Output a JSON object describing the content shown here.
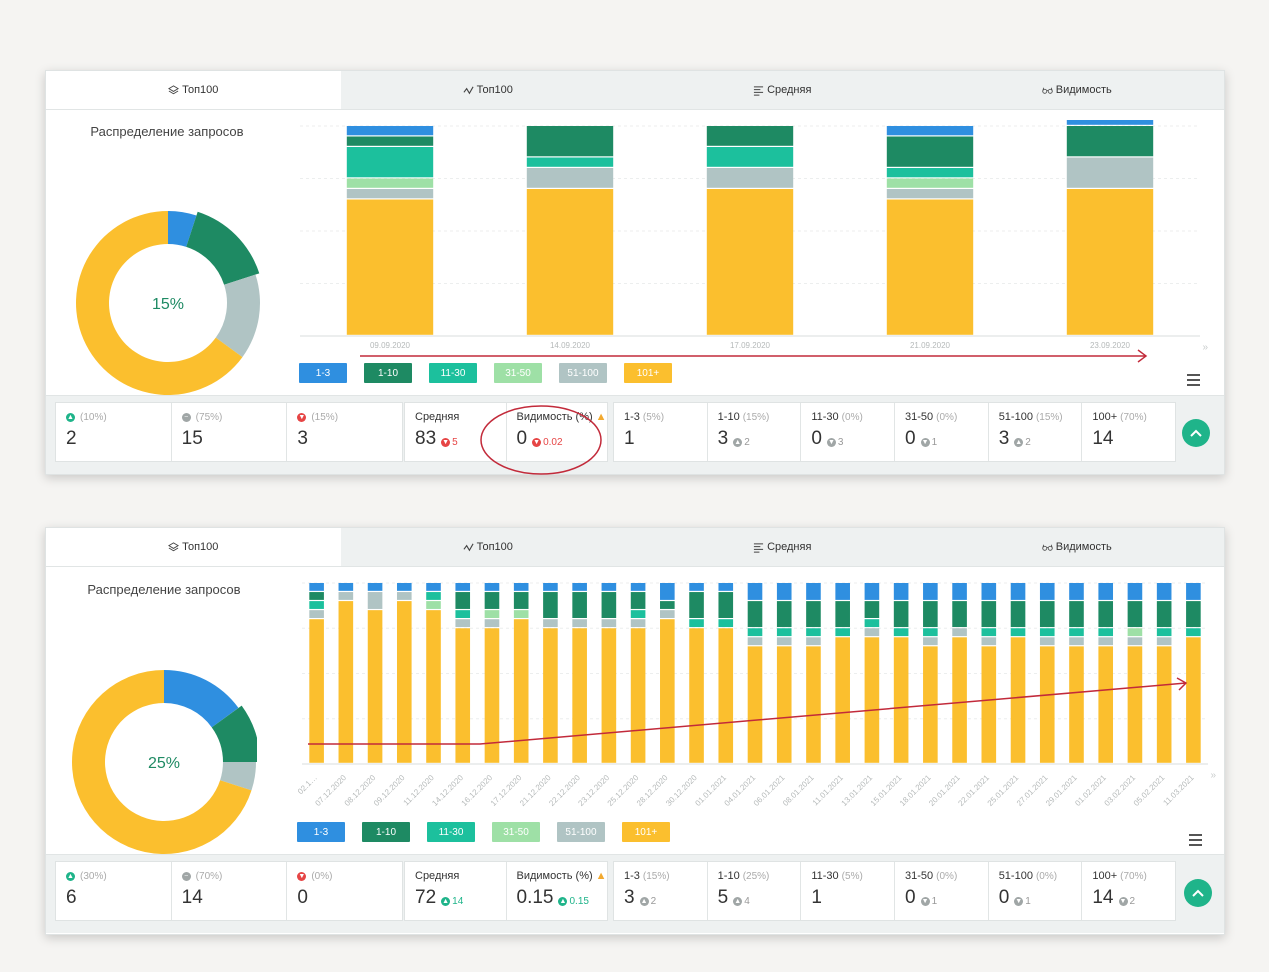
{
  "colors": {
    "c1_3": "#2f8fe0",
    "c1_10": "#1e8a63",
    "c11_30": "#1cc09d",
    "c31_50": "#9ee0a6",
    "c51_100": "#b0c4c4",
    "c101": "#fbbf2e",
    "accent": "#1fb48a",
    "annotation": "#c22a3a"
  },
  "panels": [
    {
      "tabs": [
        {
          "label": "Топ100",
          "icon": "layers-icon"
        },
        {
          "label": "Топ100",
          "icon": "trend-icon"
        },
        {
          "label": "Средняя",
          "icon": "lines-icon"
        },
        {
          "label": "Видимость",
          "icon": "glasses-icon"
        }
      ],
      "distribution_title": "Распределение запросов",
      "donut": {
        "center": "15%",
        "shares": [
          5,
          15,
          15,
          65
        ]
      },
      "legend": [
        "1-3",
        "1-10",
        "11-30",
        "31-50",
        "51-100",
        "101+"
      ],
      "stats": {
        "dist": [
          {
            "pct": "(10%)",
            "value": "2"
          },
          {
            "pct": "(75%)",
            "value": "15"
          },
          {
            "pct": "(15%)",
            "value": "3"
          }
        ],
        "avg": {
          "label": "Средняя",
          "value": "83",
          "delta": "5"
        },
        "vis": {
          "label": "Видимость (%)",
          "value": "0",
          "delta": "0.02"
        },
        "ranges": [
          {
            "label": "1-3",
            "pct": "(5%)",
            "value": "1",
            "delta": ""
          },
          {
            "label": "1-10",
            "pct": "(15%)",
            "value": "3",
            "delta": "2"
          },
          {
            "label": "11-30",
            "pct": "(0%)",
            "value": "0",
            "delta": "3"
          },
          {
            "label": "31-50",
            "pct": "(0%)",
            "value": "0",
            "delta": "1"
          },
          {
            "label": "51-100",
            "pct": "(15%)",
            "value": "3",
            "delta": "2"
          },
          {
            "label": "100+",
            "pct": "(70%)",
            "value": "14",
            "delta": ""
          }
        ]
      }
    },
    {
      "tabs": [
        {
          "label": "Топ100",
          "icon": "layers-icon"
        },
        {
          "label": "Топ100",
          "icon": "trend-icon"
        },
        {
          "label": "Средняя",
          "icon": "lines-icon"
        },
        {
          "label": "Видимость",
          "icon": "glasses-icon"
        }
      ],
      "distribution_title": "Распределение запросов",
      "donut": {
        "center": "25%",
        "shares": [
          15,
          10,
          5,
          70
        ]
      },
      "legend": [
        "1-3",
        "1-10",
        "11-30",
        "31-50",
        "51-100",
        "101+"
      ],
      "stats": {
        "dist": [
          {
            "pct": "(30%)",
            "value": "6"
          },
          {
            "pct": "(70%)",
            "value": "14"
          },
          {
            "pct": "(0%)",
            "value": "0"
          }
        ],
        "avg": {
          "label": "Средняя",
          "value": "72",
          "delta": "14"
        },
        "vis": {
          "label": "Видимость (%)",
          "value": "0.15",
          "delta": "0.15"
        },
        "ranges": [
          {
            "label": "1-3",
            "pct": "(15%)",
            "value": "3",
            "delta": "2"
          },
          {
            "label": "1-10",
            "pct": "(25%)",
            "value": "5",
            "delta": "4"
          },
          {
            "label": "11-30",
            "pct": "(5%)",
            "value": "1",
            "delta": ""
          },
          {
            "label": "31-50",
            "pct": "(0%)",
            "value": "0",
            "delta": "1"
          },
          {
            "label": "51-100",
            "pct": "(0%)",
            "value": "0",
            "delta": "1"
          },
          {
            "label": "100+",
            "pct": "(70%)",
            "value": "14",
            "delta": "2"
          }
        ]
      }
    }
  ],
  "chart_data": [
    {
      "type": "bar",
      "stacked": true,
      "categories": [
        "09.09.2020",
        "14.09.2020",
        "17.09.2020",
        "21.09.2020",
        "23.09.2020"
      ],
      "series": [
        {
          "name": "1-3",
          "values": [
            1,
            0,
            0,
            1,
            1
          ]
        },
        {
          "name": "1-10",
          "values": [
            1,
            3,
            2,
            3,
            3
          ]
        },
        {
          "name": "11-30",
          "values": [
            3,
            1,
            2,
            1,
            0
          ]
        },
        {
          "name": "31-50",
          "values": [
            1,
            0,
            0,
            1,
            0
          ]
        },
        {
          "name": "51-100",
          "values": [
            1,
            2,
            2,
            1,
            3
          ]
        },
        {
          "name": "101+",
          "values": [
            13,
            14,
            14,
            13,
            14
          ]
        }
      ],
      "ylim": [
        0,
        20
      ]
    },
    {
      "type": "bar",
      "stacked": true,
      "categories": [
        "02.1…",
        "07.12.2020",
        "08.12.2020",
        "09.12.2020",
        "11.12.2020",
        "14.12.2020",
        "16.12.2020",
        "17.12.2020",
        "21.12.2020",
        "22.12.2020",
        "23.12.2020",
        "25.12.2020",
        "28.12.2020",
        "30.12.2020",
        "01.01.2021",
        "04.01.2021",
        "06.01.2021",
        "08.01.2021",
        "11.01.2021",
        "13.01.2021",
        "15.01.2021",
        "18.01.2021",
        "20.01.2021",
        "22.01.2021",
        "25.01.2021",
        "27.01.2021",
        "29.01.2021",
        "01.02.2021",
        "03.02.2021",
        "05.02.2021",
        "11.03.2021"
      ],
      "series": [
        {
          "name": "1-3",
          "values": [
            1,
            1,
            1,
            1,
            1,
            1,
            1,
            1,
            1,
            1,
            1,
            1,
            2,
            1,
            1,
            2,
            2,
            2,
            2,
            2,
            2,
            2,
            2,
            2,
            2,
            2,
            2,
            2,
            2,
            2,
            2
          ]
        },
        {
          "name": "1-10",
          "values": [
            1,
            0,
            0,
            0,
            0,
            2,
            2,
            2,
            3,
            3,
            3,
            2,
            1,
            3,
            3,
            3,
            3,
            3,
            3,
            2,
            3,
            3,
            3,
            3,
            3,
            3,
            3,
            3,
            3,
            3,
            3
          ]
        },
        {
          "name": "11-30",
          "values": [
            1,
            0,
            0,
            0,
            1,
            1,
            0,
            0,
            0,
            0,
            0,
            1,
            0,
            1,
            1,
            1,
            1,
            1,
            1,
            1,
            1,
            1,
            0,
            1,
            1,
            1,
            1,
            1,
            0,
            1,
            1
          ]
        },
        {
          "name": "31-50",
          "values": [
            0,
            0,
            0,
            0,
            1,
            0,
            1,
            1,
            0,
            0,
            0,
            0,
            0,
            0,
            0,
            0,
            0,
            0,
            0,
            0,
            0,
            0,
            0,
            0,
            0,
            0,
            0,
            0,
            1,
            0,
            0
          ]
        },
        {
          "name": "51-100",
          "values": [
            1,
            1,
            2,
            1,
            0,
            1,
            1,
            0,
            1,
            1,
            1,
            1,
            1,
            0,
            0,
            1,
            1,
            1,
            0,
            1,
            0,
            1,
            1,
            1,
            0,
            1,
            1,
            1,
            1,
            1,
            0
          ]
        },
        {
          "name": "101+",
          "values": [
            16,
            18,
            17,
            18,
            17,
            15,
            15,
            16,
            15,
            15,
            15,
            15,
            16,
            15,
            15,
            13,
            13,
            13,
            14,
            14,
            14,
            13,
            14,
            13,
            14,
            13,
            13,
            13,
            13,
            13,
            14
          ]
        }
      ],
      "ylim": [
        0,
        20
      ]
    }
  ]
}
